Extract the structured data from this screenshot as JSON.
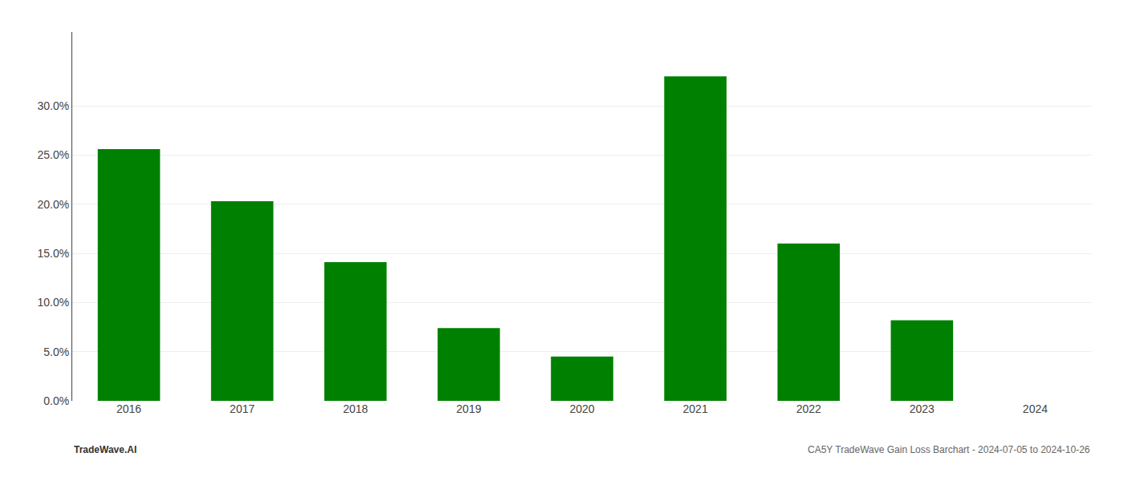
{
  "chart_data": {
    "type": "bar",
    "categories": [
      "2016",
      "2017",
      "2018",
      "2019",
      "2020",
      "2021",
      "2022",
      "2023",
      "2024"
    ],
    "values": [
      0.256,
      0.203,
      0.141,
      0.074,
      0.045,
      0.33,
      0.16,
      0.082,
      0.0
    ],
    "colors": [
      "#008000",
      "#008000",
      "#008000",
      "#008000",
      "#008000",
      "#008000",
      "#008000",
      "#008000",
      "#ffffff"
    ],
    "ylim": [
      0,
      0.375
    ],
    "yticks": [
      {
        "value": 0.0,
        "label": "0.0%"
      },
      {
        "value": 0.05,
        "label": "5.0%"
      },
      {
        "value": 0.1,
        "label": "10.0%"
      },
      {
        "value": 0.15,
        "label": "15.0%"
      },
      {
        "value": 0.2,
        "label": "20.0%"
      },
      {
        "value": 0.25,
        "label": "25.0%"
      },
      {
        "value": 0.3,
        "label": "30.0%"
      }
    ],
    "grid": true,
    "annotations": [
      "TradeWave.AI",
      "CA5Y TradeWave Gain Loss Barchart - 2024-07-05 to 2024-10-26"
    ]
  }
}
